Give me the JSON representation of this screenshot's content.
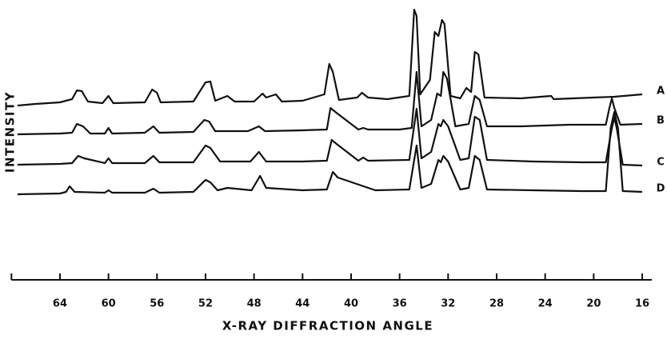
{
  "chart_data": {
    "type": "line",
    "xlabel": "X-RAY DIFFRACTION ANGLE",
    "ylabel": "INTENSITY",
    "xlim": [
      68,
      16
    ],
    "xticks": [
      64,
      60,
      56,
      52,
      48,
      44,
      40,
      36,
      32,
      28,
      24,
      20,
      16
    ],
    "ylim": [
      0,
      325
    ],
    "color": "#111111",
    "series": [
      {
        "name": "A",
        "x": [
          67.5,
          66,
          64,
          63,
          62.6,
          62.2,
          61.7,
          60.5,
          60,
          59.6,
          57,
          56.4,
          56,
          55.7,
          53,
          52,
          51.6,
          51.2,
          50.2,
          49.6,
          48,
          47.3,
          47,
          46.2,
          45.7,
          44,
          42.2,
          41.8,
          41.5,
          41,
          39.5,
          39.1,
          38.6,
          37,
          35.2,
          34.8,
          34.6,
          34.3,
          33.5,
          33.1,
          32.8,
          32.5,
          32.3,
          31.8,
          31,
          30.5,
          30.1,
          29.8,
          29.5,
          29,
          26,
          23.5,
          23.3,
          20,
          18.3,
          16
        ],
        "values": [
          198,
          200,
          202,
          206,
          217,
          216,
          203,
          201,
          210,
          201,
          202,
          218,
          214,
          202,
          203,
          227,
          228,
          204,
          210,
          203,
          203,
          213,
          208,
          212,
          203,
          204,
          212,
          250,
          240,
          205,
          208,
          214,
          208,
          206,
          210,
          318,
          310,
          212,
          230,
          290,
          285,
          305,
          300,
          210,
          207,
          220,
          215,
          265,
          262,
          208,
          207,
          210,
          206,
          208,
          209,
          212
        ]
      },
      {
        "name": "B",
        "x": [
          67.5,
          64,
          63,
          62.6,
          62.1,
          61.5,
          60.3,
          60,
          59.7,
          57,
          56.3,
          55.8,
          53,
          52.1,
          51.7,
          51.2,
          48.5,
          47.6,
          47.1,
          44,
          42,
          41.7,
          41.3,
          39.4,
          39,
          38.6,
          36,
          35,
          34.6,
          34.2,
          33.4,
          32.9,
          32.6,
          32.4,
          32.1,
          31.4,
          30.3,
          29.8,
          29.4,
          28.8,
          26,
          22,
          19,
          18.7,
          18.5,
          18.3,
          17.8,
          16
        ],
        "values": [
          162,
          163,
          164,
          175,
          172,
          163,
          163,
          170,
          163,
          164,
          172,
          164,
          165,
          180,
          178,
          166,
          166,
          172,
          166,
          167,
          168,
          195,
          190,
          168,
          170,
          168,
          168,
          170,
          240,
          172,
          180,
          213,
          210,
          240,
          232,
          172,
          175,
          210,
          205,
          172,
          172,
          174,
          174,
          195,
          207,
          195,
          174,
          175
        ]
      },
      {
        "name": "C",
        "x": [
          67.5,
          64,
          63,
          62.5,
          62,
          60.3,
          60,
          59.7,
          57,
          56.3,
          55.8,
          53,
          52,
          51.6,
          50.8,
          48.3,
          47.6,
          47,
          44,
          42,
          41.6,
          41.2,
          39.4,
          39,
          38.6,
          35.2,
          34.6,
          34.2,
          33.4,
          32.8,
          32.6,
          32.4,
          32,
          31,
          30.3,
          29.8,
          29.4,
          28.8,
          25,
          21,
          19,
          18.5,
          18.3,
          18.1,
          17.6,
          16
        ],
        "values": [
          124,
          125,
          126,
          135,
          132,
          126,
          132,
          126,
          126,
          135,
          127,
          127,
          148,
          145,
          128,
          128,
          140,
          128,
          128,
          129,
          155,
          150,
          129,
          133,
          129,
          130,
          194,
          132,
          140,
          175,
          172,
          180,
          172,
          130,
          132,
          184,
          180,
          130,
          128,
          127,
          127,
          170,
          183,
          170,
          124,
          123
        ]
      },
      {
        "name": "D",
        "x": [
          67.5,
          64,
          63.5,
          63.2,
          62.8,
          60.3,
          60,
          59.7,
          57,
          56.3,
          55.8,
          53,
          52,
          51.6,
          51,
          50.2,
          48.2,
          47.5,
          47,
          44,
          42,
          41.5,
          41.1,
          38,
          35.2,
          34.6,
          34.2,
          33.4,
          32.8,
          32.6,
          32.4,
          32,
          31,
          30.3,
          29.8,
          29.4,
          28.8,
          25,
          21,
          19,
          18.6,
          18.3,
          18,
          17.6,
          16
        ],
        "values": [
          87,
          88,
          90,
          97,
          90,
          89,
          92,
          89,
          89,
          94,
          89,
          90,
          105,
          102,
          92,
          95,
          92,
          110,
          95,
          92,
          93,
          115,
          108,
          92,
          93,
          148,
          95,
          100,
          130,
          127,
          135,
          128,
          93,
          95,
          135,
          130,
          93,
          92,
          91,
          91,
          170,
          190,
          170,
          91,
          90
        ]
      }
    ]
  }
}
